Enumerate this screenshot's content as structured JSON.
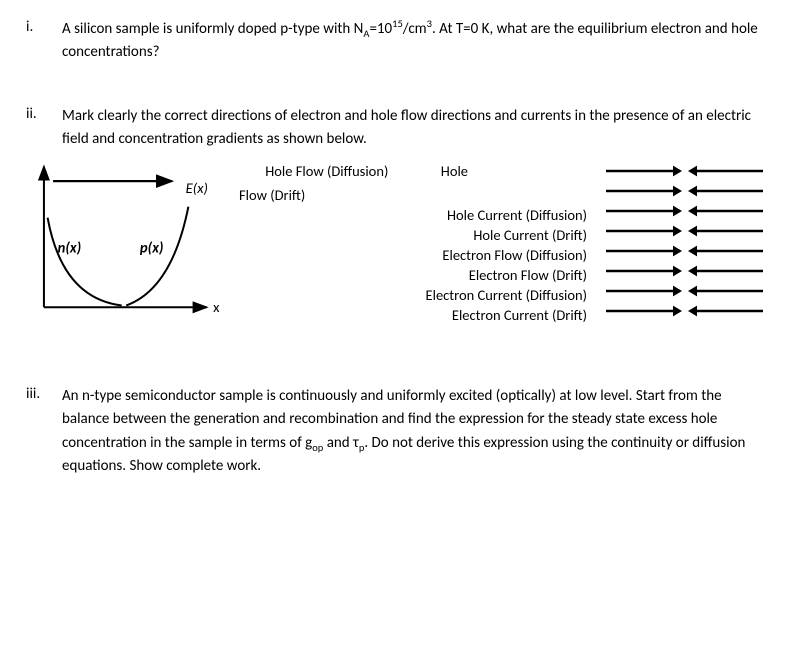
{
  "questions": {
    "i": {
      "num": "i.",
      "text_html": "A silicon sample is uniformly doped p-type with N<sub>A</sub>=10<sup>15</sup>/cm<sup>3</sup>.  At T=0 K, what are the equilibrium electron and hole concentrations?"
    },
    "ii": {
      "num": "ii.",
      "text_html": "Mark clearly the correct directions of electron and hole flow directions and currents in the presence of an electric field and concentration gradients as shown below."
    },
    "iii": {
      "num": "iii.",
      "text_html": "An n-type semiconductor sample is continuously and uniformly excited (optically) at low level.  Start from the balance between the generation and recombination and find the expression for the steady state excess hole concentration in the sample in terms of g<sub>op</sub> and τ<sub>p</sub>.  Do not derive this expression using the continuity or diffusion equations.  Show complete work."
    }
  },
  "diagram": {
    "E_label": "E(x)",
    "n_label": "n(x)",
    "p_label": "p(x)",
    "x_label": "x",
    "stroke": "#000000",
    "stroke_width": 2.2
  },
  "flow_labels": {
    "r0a": "Hole Flow (Diffusion)",
    "r0b": "Hole",
    "r1": "Flow (Drift)",
    "r2": "Hole Current (Diffusion)",
    "r3": "Hole Current (Drift)",
    "r4": "Electron Flow (Diffusion)",
    "r5": "Electron Flow (Drift)",
    "r6": "Electron Current (Diffusion)",
    "r7": "Electron Current (Drift)"
  },
  "arrow_style": {
    "stroke": "#000000",
    "stroke_width": 2.5,
    "length": 68,
    "head": 9
  }
}
